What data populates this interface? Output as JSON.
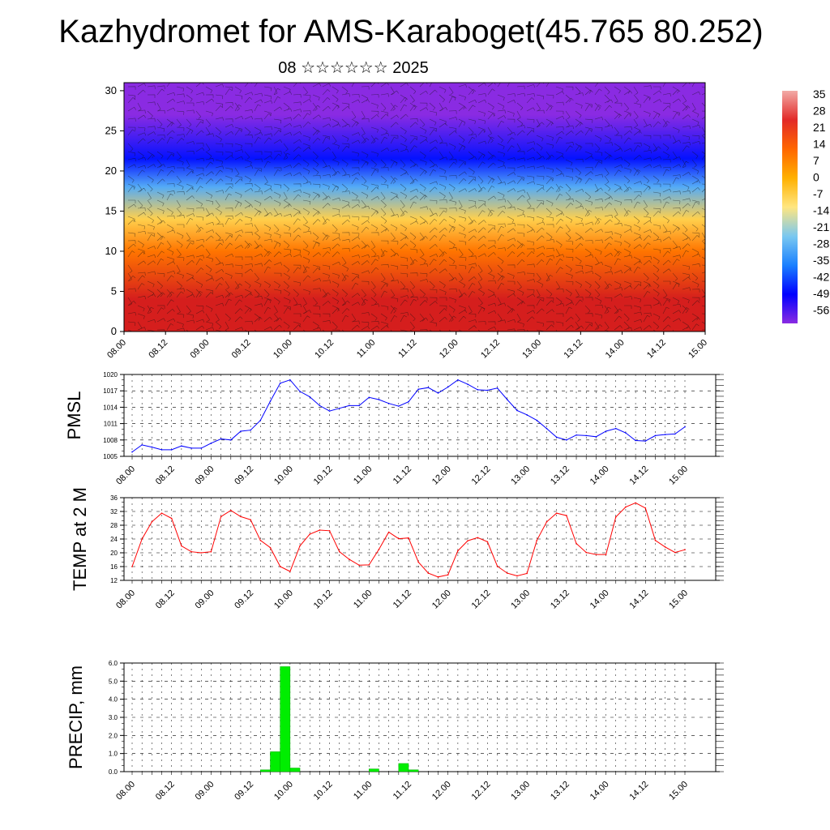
{
  "title": "Kazhydromet for AMS-Karaboget(45.765 80.252)",
  "subtitle": "08 ☆☆☆☆☆☆ 2025",
  "colorbar": {
    "labels": [
      "35",
      "28",
      "21",
      "14",
      "7",
      "0",
      "-7",
      "-14",
      "-21",
      "-28",
      "-35",
      "-42",
      "-49",
      "-56"
    ],
    "colors": [
      "#f2aaa6",
      "#e22a28",
      "#ff6600",
      "#ffb000",
      "#ffe680",
      "#7ac8f0",
      "#1a80ff",
      "#0000ff",
      "#8a2be2"
    ]
  },
  "chart_data": [
    {
      "type": "heatmap",
      "name": "cross-section",
      "x_ticks": [
        "08.00",
        "08.12",
        "09.00",
        "09.12",
        "10.00",
        "10.12",
        "11.00",
        "11.12",
        "12.00",
        "12.12",
        "13.00",
        "13.12",
        "14.00",
        "14.12",
        "15.00"
      ],
      "y_ticks": [
        "0",
        "5",
        "10",
        "15",
        "20",
        "25",
        "30"
      ],
      "ylim": [
        0,
        31
      ],
      "bands": [
        {
          "from": 0,
          "to": 8,
          "value": 30
        },
        {
          "from": 8,
          "to": 12,
          "value": 18
        },
        {
          "from": 12,
          "to": 16,
          "value": 4
        },
        {
          "from": 16,
          "to": 20,
          "value": -22
        },
        {
          "from": 20,
          "to": 23,
          "value": -40
        },
        {
          "from": 23,
          "to": 31,
          "value": -56
        }
      ],
      "wind_barbs": true
    },
    {
      "type": "line",
      "ylabel": "PMSL",
      "color": "#0000ff",
      "ylim": [
        1005,
        1020
      ],
      "y_ticks": [
        "1005",
        "1008",
        "1011",
        "1014",
        "1017",
        "1020"
      ],
      "x_ticks": [
        "08.00",
        "08.12",
        "09.00",
        "09.12",
        "10.00",
        "10.12",
        "11.00",
        "11.12",
        "12.00",
        "12.12",
        "13.00",
        "13.12",
        "14.00",
        "14.12",
        "15.00"
      ],
      "x_hours": [
        0,
        3,
        6,
        9,
        12,
        15,
        18,
        21,
        24,
        27,
        30,
        33,
        36,
        39,
        42,
        45,
        48,
        51,
        54,
        57,
        60,
        63,
        66,
        69,
        72,
        75,
        78,
        81,
        84,
        87,
        90,
        93,
        96,
        99,
        102,
        105,
        108,
        111,
        114,
        117,
        120,
        123,
        126,
        129,
        132,
        135,
        138,
        141,
        144,
        147,
        150,
        153,
        156,
        159,
        162,
        165,
        168
      ],
      "values": [
        1005.8,
        1007.1,
        1006.7,
        1006.2,
        1006.2,
        1006.9,
        1006.5,
        1006.5,
        1007.4,
        1008.2,
        1008.0,
        1009.6,
        1009.8,
        1011.6,
        1015.1,
        1018.4,
        1019.0,
        1016.9,
        1015.9,
        1014.3,
        1013.3,
        1013.8,
        1014.3,
        1014.3,
        1015.8,
        1015.4,
        1014.7,
        1014.2,
        1015.0,
        1017.3,
        1017.6,
        1016.6,
        1017.7,
        1019.0,
        1018.2,
        1017.2,
        1017.1,
        1017.5,
        1015.4,
        1013.4,
        1012.6,
        1011.6,
        1010.1,
        1008.5,
        1008.0,
        1008.9,
        1008.8,
        1008.6,
        1009.6,
        1010.1,
        1009.3,
        1007.9,
        1007.8,
        1008.8,
        1009.0,
        1009.1,
        1010.4
      ]
    },
    {
      "type": "line",
      "ylabel": "TEMP at 2 M",
      "color": "#ff0000",
      "ylim": [
        12,
        36
      ],
      "y_ticks": [
        "12",
        "16",
        "20",
        "24",
        "28",
        "32",
        "36"
      ],
      "x_ticks": [
        "08.00",
        "08.12",
        "09.00",
        "09.12",
        "10.00",
        "10.12",
        "11.00",
        "11.12",
        "12.00",
        "12.12",
        "13.00",
        "13.12",
        "14.00",
        "14.12",
        "15.00"
      ],
      "x_hours": [
        0,
        3,
        6,
        9,
        12,
        15,
        18,
        21,
        24,
        27,
        30,
        33,
        36,
        39,
        42,
        45,
        48,
        51,
        54,
        57,
        60,
        63,
        66,
        69,
        72,
        75,
        78,
        81,
        84,
        87,
        90,
        93,
        96,
        99,
        102,
        105,
        108,
        111,
        114,
        117,
        120,
        123,
        126,
        129,
        132,
        135,
        138,
        141,
        144,
        147,
        150,
        153,
        156,
        159,
        162,
        165,
        168
      ],
      "values": [
        16.0,
        24.0,
        29.0,
        31.5,
        30.0,
        22.0,
        20.3,
        20.0,
        20.3,
        30.5,
        32.3,
        30.5,
        29.6,
        23.6,
        21.5,
        16.0,
        14.6,
        22.0,
        25.4,
        26.6,
        26.4,
        20.3,
        18.1,
        16.4,
        16.5,
        21.0,
        26.0,
        24.1,
        24.3,
        17.3,
        14.1,
        13.0,
        13.6,
        20.6,
        23.5,
        24.4,
        23.2,
        16.1,
        14.1,
        13.3,
        14.0,
        23.6,
        29.0,
        31.5,
        30.8,
        22.7,
        20.1,
        19.5,
        19.5,
        30.4,
        33.3,
        34.5,
        33.0,
        23.6,
        21.7,
        20.1,
        20.9
      ]
    },
    {
      "type": "bar",
      "ylabel": "PRECIP, mm",
      "color": "#00ee00",
      "ylim": [
        0,
        6
      ],
      "y_ticks": [
        "0.0",
        "1.0",
        "2.0",
        "3.0",
        "4.0",
        "5.0",
        "6.0"
      ],
      "x_ticks": [
        "08.00",
        "08.12",
        "09.00",
        "09.12",
        "10.00",
        "10.12",
        "11.00",
        "11.12",
        "12.00",
        "12.12",
        "13.00",
        "13.12",
        "14.00",
        "14.12",
        "15.00"
      ],
      "x_hours": [
        40.5,
        43.5,
        46.5,
        49.5,
        73.5,
        82.5,
        85.5
      ],
      "values": [
        0.1,
        1.1,
        5.8,
        0.2,
        0.15,
        0.45,
        0.1
      ]
    }
  ]
}
